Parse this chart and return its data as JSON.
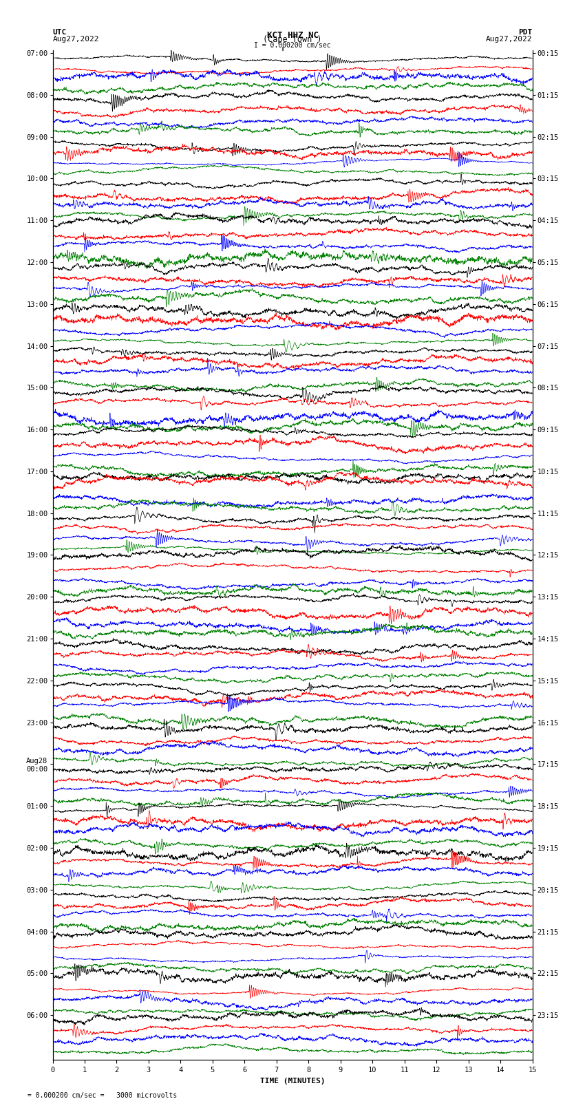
{
  "title_line1": "KCT HHZ NC",
  "title_line2": "(Cape Town )",
  "title_line3": "I = 0.000200 cm/sec",
  "utc_label": "UTC",
  "utc_date": "Aug27,2022",
  "pdt_label": "PDT",
  "pdt_date": "Aug27,2022",
  "xlabel": "TIME (MINUTES)",
  "bottom_label": " = 0.000200 cm/sec =   3000 microvolts",
  "left_times": [
    "07:00",
    "08:00",
    "09:00",
    "10:00",
    "11:00",
    "12:00",
    "13:00",
    "14:00",
    "15:00",
    "16:00",
    "17:00",
    "18:00",
    "19:00",
    "20:00",
    "21:00",
    "22:00",
    "23:00",
    "Aug28\n00:00",
    "01:00",
    "02:00",
    "03:00",
    "04:00",
    "05:00",
    "06:00"
  ],
  "right_times": [
    "00:15",
    "01:15",
    "02:15",
    "03:15",
    "04:15",
    "05:15",
    "06:15",
    "07:15",
    "08:15",
    "09:15",
    "10:15",
    "11:15",
    "12:15",
    "13:15",
    "14:15",
    "15:15",
    "16:15",
    "17:15",
    "18:15",
    "19:15",
    "20:15",
    "21:15",
    "22:15",
    "23:15"
  ],
  "colors": [
    "black",
    "red",
    "blue",
    "green"
  ],
  "n_traces": 96,
  "n_samples": 2000,
  "amplitude": 0.48,
  "fig_width": 8.5,
  "fig_height": 16.13,
  "dpi": 100,
  "bg_color": "white",
  "title_fontsize": 9,
  "label_fontsize": 8,
  "tick_fontsize": 7.5,
  "trace_linewidth": 0.5,
  "x_tick_positions": [
    0,
    1,
    2,
    3,
    4,
    5,
    6,
    7,
    8,
    9,
    10,
    11,
    12,
    13,
    14,
    15
  ],
  "x_tick_labels": [
    "0",
    "1",
    "2",
    "3",
    "4",
    "5",
    "6",
    "7",
    "8",
    "9",
    "10",
    "11",
    "12",
    "13",
    "14",
    "15"
  ]
}
